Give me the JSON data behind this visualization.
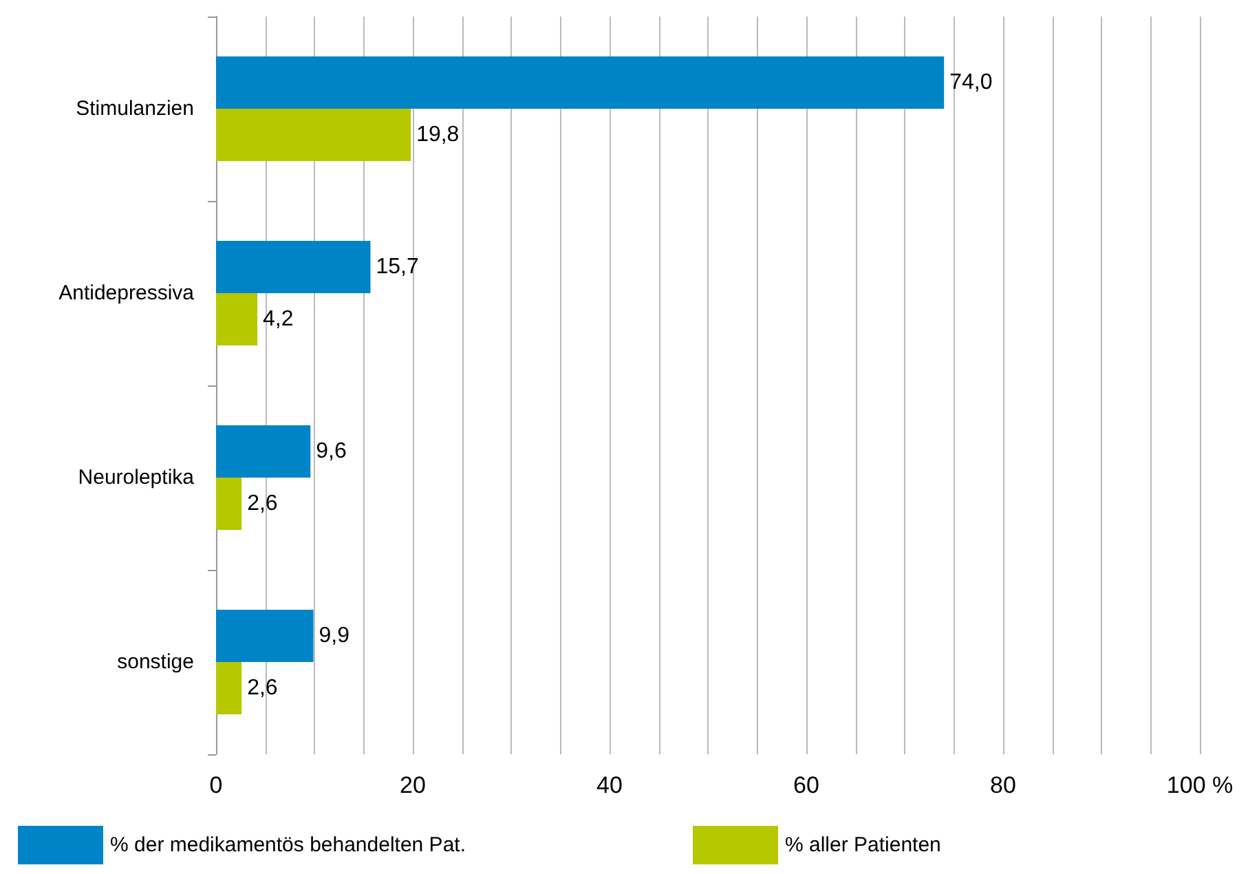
{
  "chart_data": {
    "type": "bar",
    "orientation": "horizontal",
    "categories": [
      "Stimulanzien",
      "Antidepressiva",
      "Neuroleptika",
      "sonstige"
    ],
    "series": [
      {
        "name": "% der medikamentös behandelten Pat.",
        "color": "#0084c8",
        "values": [
          74.0,
          15.7,
          9.6,
          9.9
        ],
        "value_labels": [
          "74,0",
          "15,7",
          "9,6",
          "9,9"
        ]
      },
      {
        "name": "% aller Patienten",
        "color": "#b5c800",
        "values": [
          19.8,
          4.2,
          2.6,
          2.6
        ],
        "value_labels": [
          "19,8",
          "4,2",
          "2,6",
          "2,6"
        ]
      }
    ],
    "xlim": [
      0,
      100
    ],
    "xticks": [
      0,
      {
        "value": 5,
        "label": null
      },
      {
        "value": 10,
        "label": null
      },
      {
        "value": 15,
        "label": null
      },
      20,
      {
        "value": 25,
        "label": null
      },
      {
        "value": 30,
        "label": null
      },
      {
        "value": 35,
        "label": null
      },
      40,
      {
        "value": 45,
        "label": null
      },
      {
        "value": 50,
        "label": null
      },
      {
        "value": 55,
        "label": null
      },
      60,
      {
        "value": 65,
        "label": null
      },
      {
        "value": 70,
        "label": null
      },
      {
        "value": 75,
        "label": null
      },
      80,
      {
        "value": 85,
        "label": null
      },
      {
        "value": 90,
        "label": null
      },
      {
        "value": 95,
        "label": null
      },
      {
        "value": 100,
        "label": "100 %"
      }
    ],
    "grid": "x",
    "legend": "bottom"
  }
}
